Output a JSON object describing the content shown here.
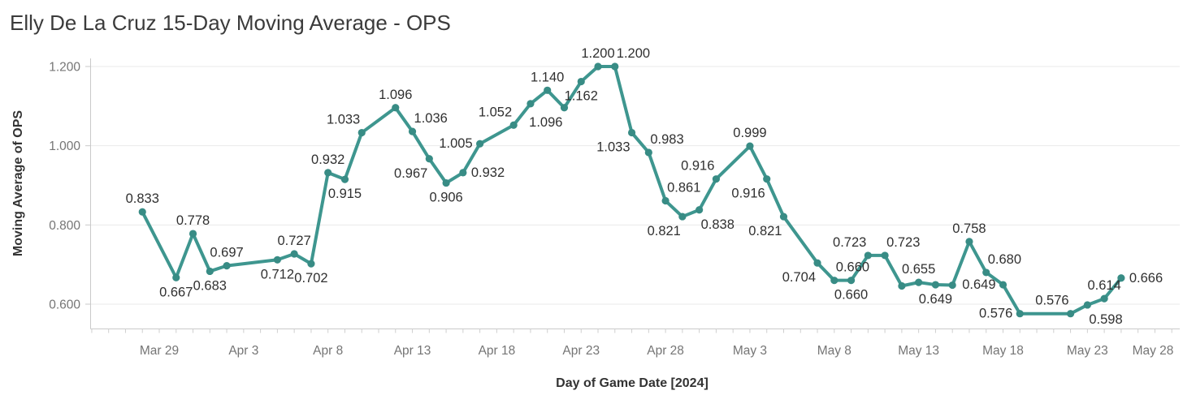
{
  "page": {
    "background": "#FFFFFF"
  },
  "chart_data": {
    "type": "line",
    "title": "Elly De La Cruz 15-Day Moving Average - OPS",
    "xlabel": "Day of Game Date [2024]",
    "ylabel": "Moving Average of OPS",
    "legend": "none",
    "grid": "horizontal-only",
    "ylim": [
      0.54,
      1.21
    ],
    "y_ticks": [
      {
        "label": "0.600",
        "value": 0.6
      },
      {
        "label": "0.800",
        "value": 0.8
      },
      {
        "label": "1.000",
        "value": 1.0
      },
      {
        "label": "1.200",
        "value": 1.2
      }
    ],
    "x_ticks": [
      {
        "label": "Mar 29",
        "day": 0
      },
      {
        "label": "Apr 3",
        "day": 5
      },
      {
        "label": "Apr 8",
        "day": 10
      },
      {
        "label": "Apr 13",
        "day": 15
      },
      {
        "label": "Apr 18",
        "day": 20
      },
      {
        "label": "Apr 23",
        "day": 25
      },
      {
        "label": "Apr 28",
        "day": 30
      },
      {
        "label": "May 3",
        "day": 35
      },
      {
        "label": "May 8",
        "day": 40
      },
      {
        "label": "May 13",
        "day": 45
      },
      {
        "label": "May 18",
        "day": 50
      },
      {
        "label": "May 23",
        "day": 55
      },
      {
        "label": "May 28",
        "day": 60
      }
    ],
    "line_color": "#3E968F",
    "marker_color": "#388C85",
    "label_color": "#303030",
    "points": [
      {
        "date": "Mar 28",
        "day": -1,
        "value": 0.833,
        "label": "0.833",
        "label_pos": "above"
      },
      {
        "date": "Mar 30",
        "day": 1,
        "value": 0.667,
        "label": "0.667",
        "label_pos": "below"
      },
      {
        "date": "Mar 31",
        "day": 2,
        "value": 0.778,
        "label": "0.778",
        "label_pos": "above"
      },
      {
        "date": "Apr 1",
        "day": 3,
        "value": 0.683,
        "label": "0.683",
        "label_pos": "below"
      },
      {
        "date": "Apr 2",
        "day": 4,
        "value": 0.697,
        "label": "0.697",
        "label_pos": "above"
      },
      {
        "date": "Apr 5",
        "day": 7,
        "value": 0.712,
        "label": "0.712",
        "label_pos": "below"
      },
      {
        "date": "Apr 6",
        "day": 8,
        "value": 0.727,
        "label": "0.727",
        "label_pos": "above"
      },
      {
        "date": "Apr 7",
        "day": 9,
        "value": 0.702,
        "label": "0.702",
        "label_pos": "below"
      },
      {
        "date": "Apr 8",
        "day": 10,
        "value": 0.932,
        "label": "0.932",
        "label_pos": "above"
      },
      {
        "date": "Apr 9",
        "day": 11,
        "value": 0.915,
        "label": "0.915",
        "label_pos": "below"
      },
      {
        "date": "Apr 10",
        "day": 12,
        "value": 1.033,
        "label": "1.033",
        "label_pos": "above-left"
      },
      {
        "date": "Apr 12",
        "day": 14,
        "value": 1.096,
        "label": "1.096",
        "label_pos": "above"
      },
      {
        "date": "Apr 13",
        "day": 15,
        "value": 1.036,
        "label": "1.036",
        "label_pos": "above-right"
      },
      {
        "date": "Apr 14",
        "day": 16,
        "value": 0.967,
        "label": "0.967",
        "label_pos": "below-left"
      },
      {
        "date": "Apr 15",
        "day": 17,
        "value": 0.906,
        "label": "0.906",
        "label_pos": "below"
      },
      {
        "date": "Apr 16",
        "day": 18,
        "value": 0.932,
        "label": "0.932",
        "label_pos": "right"
      },
      {
        "date": "Apr 17",
        "day": 19,
        "value": 1.005,
        "label": "1.005",
        "label_pos": "left"
      },
      {
        "date": "Apr 19",
        "day": 21,
        "value": 1.052,
        "label": "1.052",
        "label_pos": "above-left"
      },
      {
        "date": "Apr 20",
        "day": 22,
        "value": 1.106,
        "label": "",
        "label_pos": "none"
      },
      {
        "date": "Apr 21",
        "day": 23,
        "value": 1.14,
        "label": "1.140",
        "label_pos": "above"
      },
      {
        "date": "Apr 22",
        "day": 24,
        "value": 1.096,
        "label": "1.096",
        "label_pos": "below-left"
      },
      {
        "date": "Apr 23",
        "day": 25,
        "value": 1.162,
        "label": "1.162",
        "label_pos": "below"
      },
      {
        "date": "Apr 24",
        "day": 26,
        "value": 1.2,
        "label": "1.200",
        "label_pos": "above"
      },
      {
        "date": "Apr 25",
        "day": 27,
        "value": 1.2,
        "label": "1.200",
        "label_pos": "above-right"
      },
      {
        "date": "Apr 26",
        "day": 28,
        "value": 1.033,
        "label": "1.033",
        "label_pos": "below-left"
      },
      {
        "date": "Apr 27",
        "day": 29,
        "value": 0.983,
        "label": "0.983",
        "label_pos": "above-right"
      },
      {
        "date": "Apr 28",
        "day": 30,
        "value": 0.861,
        "label": "0.861",
        "label_pos": "above-right"
      },
      {
        "date": "Apr 29",
        "day": 31,
        "value": 0.821,
        "label": "0.821",
        "label_pos": "below-left"
      },
      {
        "date": "Apr 30",
        "day": 32,
        "value": 0.838,
        "label": "0.838",
        "label_pos": "below-right"
      },
      {
        "date": "May 1",
        "day": 33,
        "value": 0.916,
        "label": "0.916",
        "label_pos": "above-left"
      },
      {
        "date": "May 3",
        "day": 35,
        "value": 0.999,
        "label": "0.999",
        "label_pos": "above"
      },
      {
        "date": "May 4",
        "day": 36,
        "value": 0.916,
        "label": "0.916",
        "label_pos": "below-left"
      },
      {
        "date": "May 5",
        "day": 37,
        "value": 0.821,
        "label": "0.821",
        "label_pos": "below-left"
      },
      {
        "date": "May 7",
        "day": 39,
        "value": 0.704,
        "label": "0.704",
        "label_pos": "below-left"
      },
      {
        "date": "May 8",
        "day": 40,
        "value": 0.66,
        "label": "0.660",
        "label_pos": "above-right"
      },
      {
        "date": "May 9",
        "day": 41,
        "value": 0.66,
        "label": "0.660",
        "label_pos": "below"
      },
      {
        "date": "May 10",
        "day": 42,
        "value": 0.723,
        "label": "0.723",
        "label_pos": "above-left"
      },
      {
        "date": "May 11",
        "day": 43,
        "value": 0.723,
        "label": "0.723",
        "label_pos": "above-right"
      },
      {
        "date": "May 12",
        "day": 44,
        "value": 0.646,
        "label": "",
        "label_pos": "none"
      },
      {
        "date": "May 13",
        "day": 45,
        "value": 0.655,
        "label": "0.655",
        "label_pos": "above"
      },
      {
        "date": "May 14",
        "day": 46,
        "value": 0.649,
        "label": "0.649",
        "label_pos": "below"
      },
      {
        "date": "May 15",
        "day": 47,
        "value": 0.648,
        "label": "",
        "label_pos": "none"
      },
      {
        "date": "May 16",
        "day": 48,
        "value": 0.758,
        "label": "0.758",
        "label_pos": "above"
      },
      {
        "date": "May 17",
        "day": 49,
        "value": 0.68,
        "label": "0.680",
        "label_pos": "above-right"
      },
      {
        "date": "May 18",
        "day": 50,
        "value": 0.649,
        "label": "0.649",
        "label_pos": "left"
      },
      {
        "date": "May 19",
        "day": 51,
        "value": 0.576,
        "label": "0.576",
        "label_pos": "left"
      },
      {
        "date": "May 22",
        "day": 54,
        "value": 0.576,
        "label": "0.576",
        "label_pos": "above-left"
      },
      {
        "date": "May 23",
        "day": 55,
        "value": 0.598,
        "label": "0.598",
        "label_pos": "below-right"
      },
      {
        "date": "May 24",
        "day": 56,
        "value": 0.614,
        "label": "0.614",
        "label_pos": "above"
      },
      {
        "date": "May 25",
        "day": 57,
        "value": 0.666,
        "label": "0.666",
        "label_pos": "right"
      }
    ]
  }
}
